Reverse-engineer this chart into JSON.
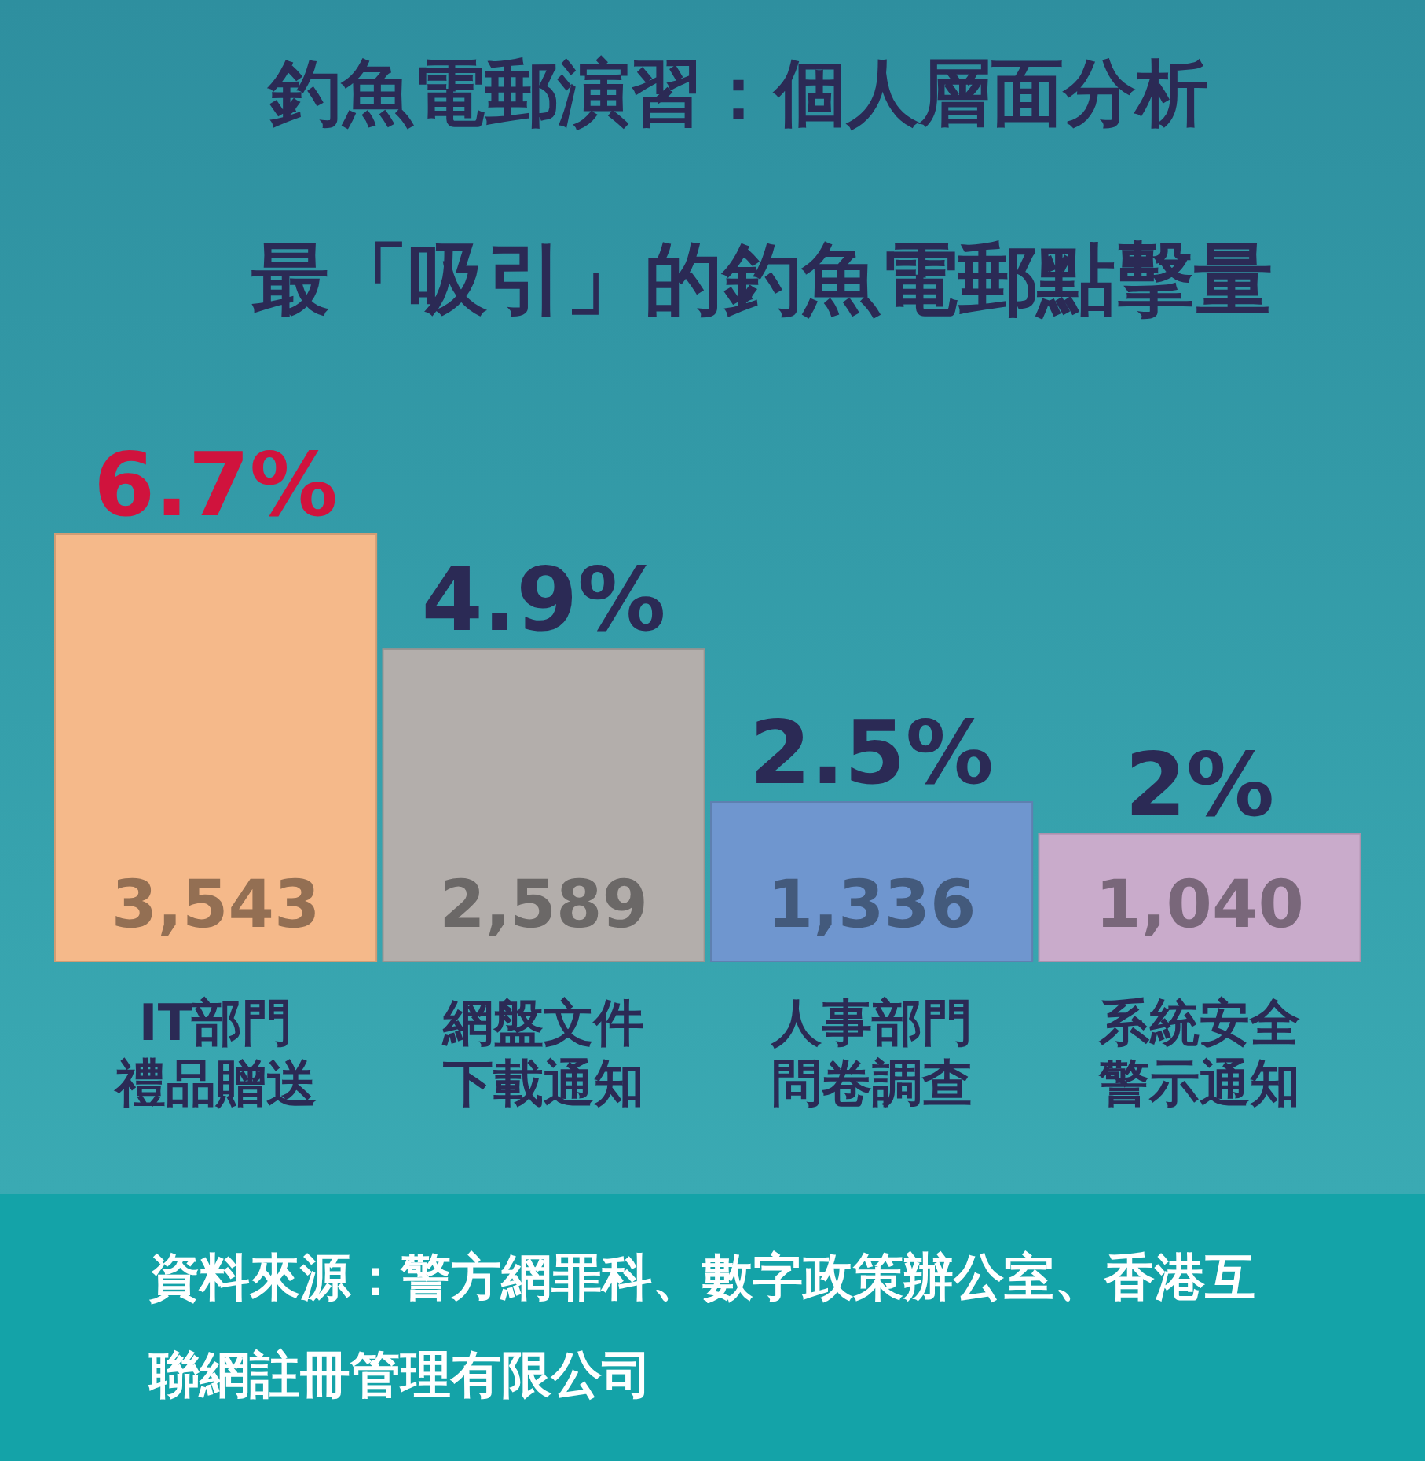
{
  "chart_data": {
    "type": "bar",
    "title": "釣魚電郵演習：個人層面分析",
    "subtitle": "最「吸引」的釣魚電郵點擊量",
    "categories": [
      "IT部門禮品贈送",
      "網盤文件下載通知",
      "人事部門問卷調查",
      "系統安全警示通知"
    ],
    "values": [
      6.7,
      4.9,
      2.5,
      2
    ],
    "value_labels": [
      "6.7%",
      "4.9%",
      "2.5%",
      "2%"
    ],
    "colors": [
      "#f5b98a",
      "#b3aeab",
      "#6f96cf",
      "#c9abcb"
    ],
    "annotations": [
      "3,543",
      "2,589",
      "1,336",
      "1,040",
      "資料來源：警方網罪科、數字政策辦公室、香港互聯網註冊管理有限公司"
    ]
  }
}
